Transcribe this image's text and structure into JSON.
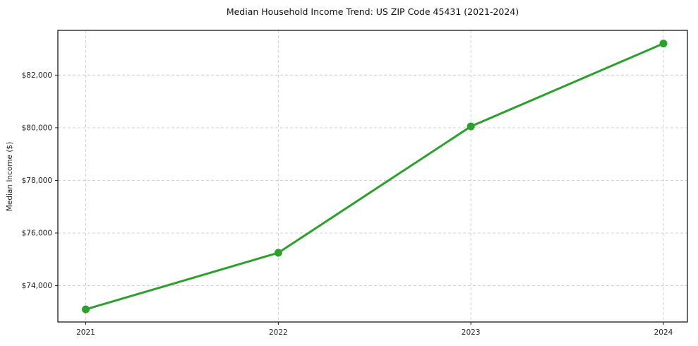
{
  "chart_data": {
    "type": "line",
    "title": "Median Household Income Trend: US ZIP Code 45431 (2021-2024)",
    "xlabel": "",
    "ylabel": "Median Income ($)",
    "categories": [
      "2021",
      "2022",
      "2023",
      "2024"
    ],
    "series": [
      {
        "values": [
          73100,
          75250,
          80050,
          83200
        ],
        "color": "#2ca02c",
        "marker": "circle"
      }
    ],
    "ylim": [
      72620,
      83700
    ],
    "yticks": {
      "values": [
        74000,
        76000,
        78000,
        80000,
        82000
      ],
      "labels": [
        "$74,000",
        "$76,000",
        "$78,000",
        "$80,000",
        "$82,000"
      ]
    },
    "grid": {
      "show": true,
      "style": "dashed",
      "color": "#cccccc"
    },
    "legend": "none",
    "colors": {
      "line": "#2ca02c",
      "spine": "#1a1a1a",
      "tick_text": "#262626",
      "title_text": "#111111"
    }
  }
}
